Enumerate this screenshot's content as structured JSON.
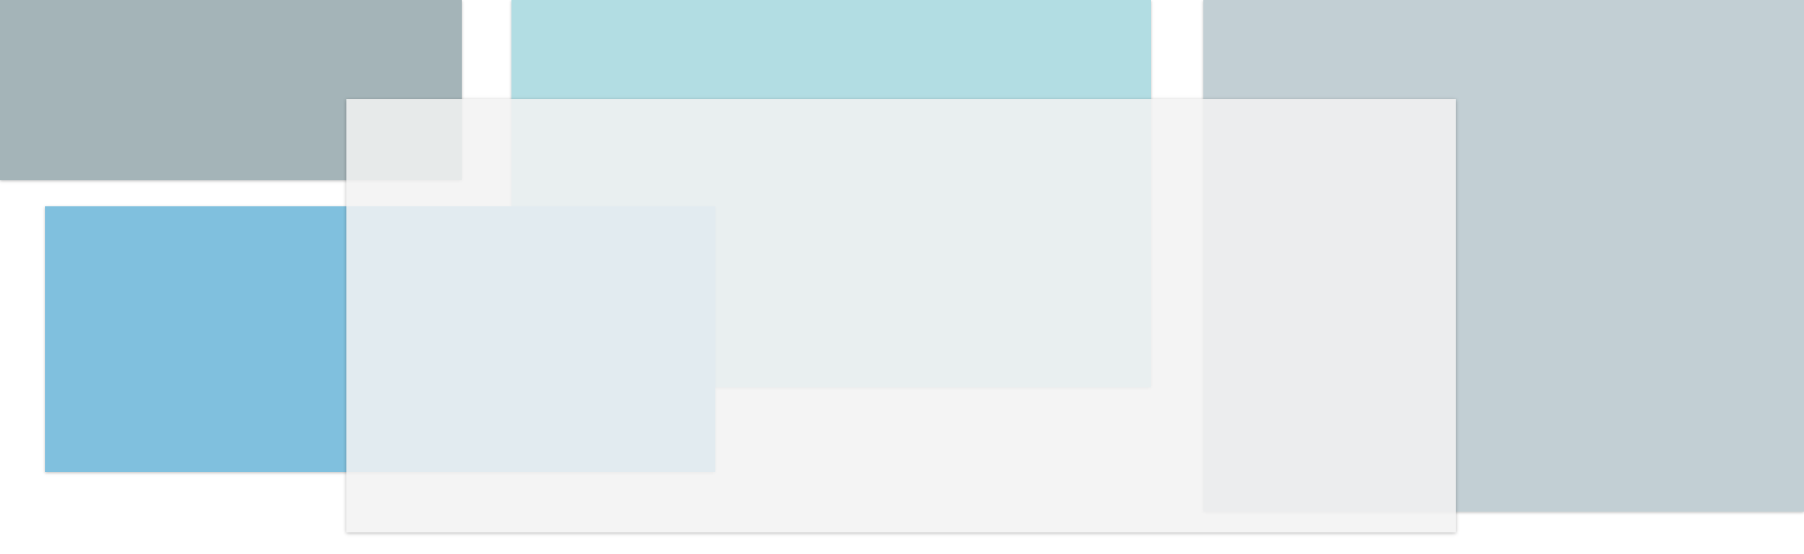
{
  "colors": {
    "background": "#ffffff",
    "tile_top_left": "#a4b4b8",
    "tile_top_center": "#b2dde3",
    "tile_right": "#c2cfd4",
    "tile_mid_left": "#80c0de",
    "overlay_panel": "rgba(242,242,242,0.86)"
  }
}
